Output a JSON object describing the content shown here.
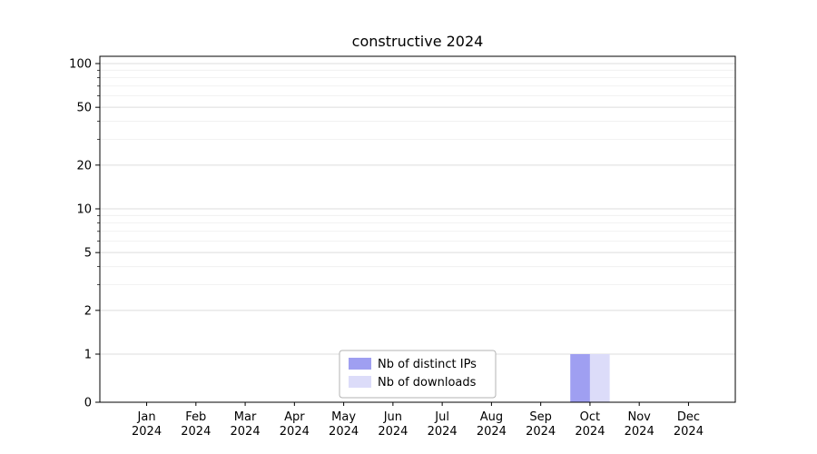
{
  "figure": {
    "title": "constructive 2024"
  },
  "chart_data": {
    "type": "bar",
    "title": "constructive 2024",
    "categories": [
      "Jan 2024",
      "Feb 2024",
      "Mar 2024",
      "Apr 2024",
      "May 2024",
      "Jun 2024",
      "Jul 2024",
      "Aug 2024",
      "Sep 2024",
      "Oct 2024",
      "Nov 2024",
      "Dec 2024"
    ],
    "x_tick_labels": [
      [
        "Jan",
        "2024"
      ],
      [
        "Feb",
        "2024"
      ],
      [
        "Mar",
        "2024"
      ],
      [
        "Apr",
        "2024"
      ],
      [
        "May",
        "2024"
      ],
      [
        "Jun",
        "2024"
      ],
      [
        "Jul",
        "2024"
      ],
      [
        "Aug",
        "2024"
      ],
      [
        "Sep",
        "2024"
      ],
      [
        "Oct",
        "2024"
      ],
      [
        "Nov",
        "2024"
      ],
      [
        "Dec",
        "2024"
      ]
    ],
    "series": [
      {
        "name": "Nb of distinct IPs",
        "color": "#9f9ff1",
        "values": [
          0,
          0,
          0,
          0,
          0,
          0,
          0,
          0,
          0,
          1,
          0,
          0
        ]
      },
      {
        "name": "Nb of downloads",
        "color": "#dcdcf9",
        "values": [
          0,
          0,
          0,
          0,
          0,
          0,
          0,
          0,
          0,
          1,
          0,
          0
        ]
      }
    ],
    "yscale": "symlog",
    "y_ticks": [
      0,
      1,
      2,
      5,
      10,
      20,
      50,
      100
    ],
    "y_minor_ticks": [
      3,
      4,
      6,
      7,
      8,
      9,
      30,
      40,
      60,
      70,
      80,
      90
    ],
    "ylim": [
      0,
      112
    ],
    "grid": true,
    "legend": {
      "position": "lower center",
      "entries": [
        "Nb of distinct IPs",
        "Nb of downloads"
      ]
    },
    "colors": {
      "axis": "#000000",
      "grid_major": "#dddddd",
      "grid_minor": "#eeeeee",
      "background": "#ffffff",
      "text": "#000000",
      "legend_border": "#b3b3b3"
    }
  }
}
